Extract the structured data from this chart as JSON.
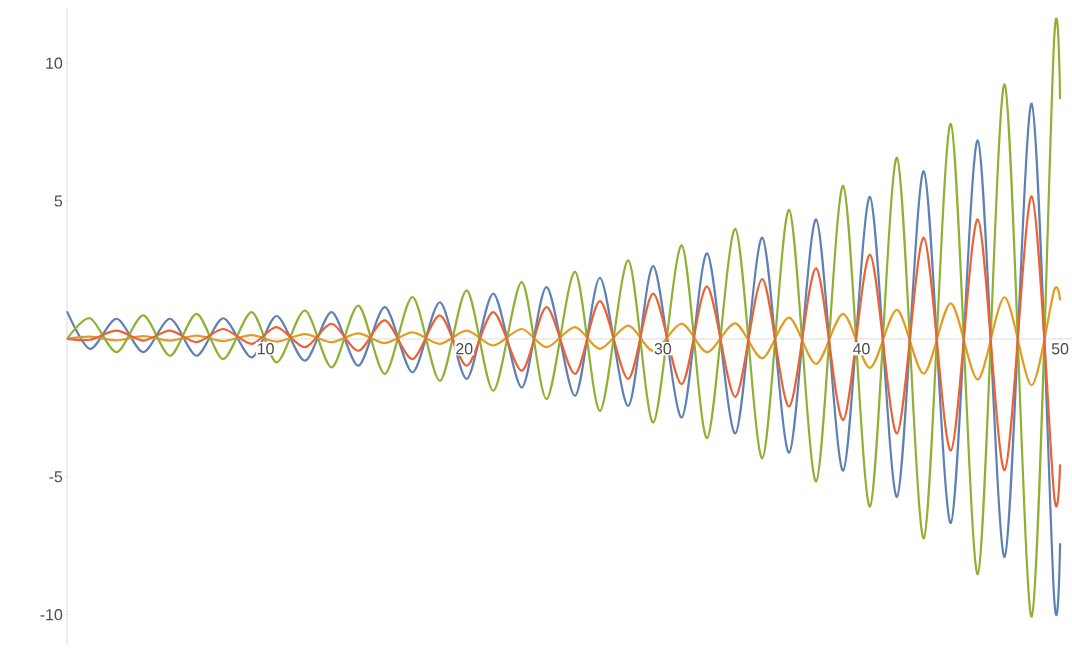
{
  "chart_data": {
    "type": "line",
    "xlim": [
      0,
      50.6
    ],
    "ylim": [
      -11.1,
      12
    ],
    "xticks": [
      10,
      20,
      30,
      40,
      50
    ],
    "yticks": [
      -10,
      -5,
      5,
      10
    ],
    "grid": false,
    "marker": "none",
    "line_style": "solid",
    "series": [
      {
        "color": "#5e81b5",
        "x": [
          0,
          1.16,
          2.5,
          3.84,
          5.19,
          6.53,
          7.87,
          9.3,
          10.56,
          11.98,
          13.33,
          14.67,
          16.01,
          17.4,
          18.78,
          20.13,
          21.47,
          22.9,
          24.15,
          25.58,
          26.84,
          28.26,
          29.52,
          30.95,
          32.23,
          33.65,
          35.01,
          36.36,
          37.72,
          39.08,
          40.43,
          41.79,
          43.14,
          44.5,
          45.86,
          47.21,
          48.57,
          49.7,
          50
        ],
        "values": [
          1.0,
          -0.36,
          0.73,
          -0.48,
          0.73,
          -0.61,
          0.75,
          -0.67,
          0.83,
          -0.79,
          0.97,
          -0.97,
          1.15,
          -1.21,
          1.33,
          -1.45,
          1.64,
          -1.76,
          1.88,
          -2.06,
          2.21,
          -2.43,
          2.64,
          -2.85,
          3.1,
          -3.43,
          3.67,
          -4.13,
          4.33,
          -4.78,
          5.15,
          -5.73,
          6.08,
          -6.68,
          7.2,
          -7.9,
          8.53,
          -9.37,
          -7.41
        ]
      },
      {
        "color": "#e19c24",
        "x": [
          0,
          1.16,
          2.5,
          3.84,
          5.19,
          6.53,
          7.87,
          9.3,
          10.56,
          11.98,
          13.33,
          14.67,
          16.01,
          17.4,
          18.78,
          20.13,
          21.47,
          22.9,
          24.15,
          25.58,
          26.84,
          28.26,
          29.52,
          30.95,
          32.23,
          33.65,
          35.01,
          36.36,
          37.72,
          39.08,
          40.43,
          41.79,
          43.14,
          44.5,
          45.86,
          47.21,
          48.57,
          49.7,
          50
        ],
        "values": [
          0,
          0.08,
          -0.05,
          0.1,
          -0.06,
          0.12,
          -0.08,
          0.14,
          -0.1,
          0.17,
          -0.12,
          0.2,
          -0.15,
          0.24,
          -0.18,
          0.3,
          -0.24,
          0.36,
          -0.3,
          0.43,
          -0.36,
          0.48,
          -0.43,
          0.55,
          -0.48,
          0.56,
          -0.7,
          0.77,
          -0.91,
          0.91,
          -1.05,
          1.05,
          -1.26,
          1.29,
          -1.47,
          1.51,
          -1.68,
          1.75,
          1.4
        ]
      },
      {
        "color": "#8fb032",
        "x": [
          0,
          1.16,
          2.5,
          3.84,
          5.19,
          6.53,
          7.87,
          9.3,
          10.56,
          11.98,
          13.33,
          14.67,
          16.01,
          17.4,
          18.78,
          20.13,
          21.47,
          22.9,
          24.15,
          25.58,
          26.84,
          28.26,
          29.52,
          30.95,
          32.23,
          33.65,
          35.01,
          36.36,
          37.72,
          39.08,
          40.43,
          41.79,
          43.14,
          44.5,
          45.86,
          47.21,
          48.57,
          49.7,
          50
        ],
        "values": [
          0,
          0.75,
          -0.48,
          0.85,
          -0.61,
          0.91,
          -0.73,
          0.97,
          -0.85,
          1.03,
          -1.03,
          1.21,
          -1.27,
          1.52,
          -1.52,
          1.76,
          -1.88,
          2.06,
          -2.18,
          2.43,
          -2.61,
          2.85,
          -3.03,
          3.39,
          -3.6,
          3.99,
          -4.33,
          4.68,
          -5.17,
          5.55,
          -6.08,
          6.57,
          -7.23,
          7.8,
          -8.53,
          9.23,
          -10.07,
          10.84,
          8.7
        ]
      },
      {
        "color": "#eb6235",
        "x": [
          0,
          1.16,
          2.5,
          3.84,
          5.19,
          6.53,
          7.87,
          9.3,
          10.56,
          11.98,
          13.33,
          14.67,
          16.01,
          17.4,
          18.78,
          20.13,
          21.47,
          22.9,
          24.15,
          25.58,
          26.84,
          28.26,
          29.52,
          30.95,
          32.23,
          33.65,
          35.01,
          36.36,
          37.72,
          39.08,
          40.43,
          41.79,
          43.14,
          44.5,
          45.86,
          47.21,
          48.57,
          49.7,
          50
        ],
        "values": [
          0,
          -0.03,
          0.3,
          -0.06,
          0.3,
          -0.12,
          0.36,
          -0.18,
          0.43,
          -0.3,
          0.55,
          -0.43,
          0.67,
          -0.73,
          0.85,
          -0.97,
          0.97,
          -1.15,
          1.15,
          -1.27,
          1.37,
          -1.45,
          1.64,
          -1.64,
          1.9,
          -2.1,
          2.17,
          -2.45,
          2.56,
          -2.94,
          3.05,
          -3.43,
          3.67,
          -4.05,
          4.33,
          -4.76,
          5.17,
          -5.67,
          -4.55
        ]
      }
    ]
  }
}
